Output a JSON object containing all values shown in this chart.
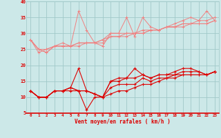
{
  "x": [
    0,
    1,
    2,
    3,
    4,
    5,
    6,
    7,
    8,
    9,
    10,
    11,
    12,
    13,
    14,
    15,
    16,
    17,
    18,
    19,
    20,
    21,
    22,
    23
  ],
  "lines_pink": [
    [
      28,
      25,
      24,
      26,
      27,
      26,
      37,
      31,
      27,
      26,
      30,
      30,
      35,
      29,
      35,
      32,
      31,
      32,
      33,
      34,
      35,
      34,
      37,
      34
    ],
    [
      28,
      24,
      25,
      26,
      26,
      26,
      27,
      27,
      27,
      28,
      30,
      30,
      30,
      30,
      31,
      31,
      31,
      32,
      32,
      33,
      33,
      34,
      34,
      35
    ],
    [
      28,
      25,
      25,
      26,
      26,
      26,
      27,
      27,
      27,
      28,
      29,
      29,
      30,
      30,
      30,
      31,
      31,
      32,
      32,
      33,
      33,
      33,
      33,
      34
    ],
    [
      28,
      25,
      24,
      26,
      26,
      26,
      26,
      27,
      27,
      27,
      29,
      29,
      29,
      30,
      30,
      31,
      31,
      32,
      32,
      32,
      33,
      33,
      33,
      34
    ]
  ],
  "lines_red": [
    [
      12,
      10,
      10,
      12,
      12,
      13,
      19,
      12,
      11,
      10,
      15,
      16,
      16,
      19,
      17,
      16,
      17,
      17,
      18,
      19,
      19,
      18,
      17,
      18
    ],
    [
      12,
      10,
      10,
      12,
      12,
      13,
      12,
      12,
      11,
      10,
      15,
      15,
      16,
      16,
      17,
      16,
      17,
      17,
      17,
      18,
      18,
      18,
      17,
      18
    ],
    [
      12,
      10,
      10,
      12,
      12,
      13,
      12,
      12,
      11,
      10,
      13,
      14,
      14,
      14,
      16,
      15,
      16,
      16,
      17,
      17,
      17,
      17,
      17,
      18
    ],
    [
      12,
      10,
      10,
      12,
      12,
      12,
      12,
      6,
      10,
      10,
      11,
      12,
      12,
      13,
      14,
      14,
      15,
      16,
      16,
      17,
      17,
      17,
      17,
      18
    ]
  ],
  "xlabel": "Vent moyen/en rafales ( km/h )",
  "ylim": [
    5,
    40
  ],
  "xlim": [
    -0.5,
    23.5
  ],
  "yticks": [
    5,
    10,
    15,
    20,
    25,
    30,
    35,
    40
  ],
  "xticks": [
    0,
    1,
    2,
    3,
    4,
    5,
    6,
    7,
    8,
    9,
    10,
    11,
    12,
    13,
    14,
    15,
    16,
    17,
    18,
    19,
    20,
    21,
    22,
    23
  ],
  "bg_color": "#cce8e8",
  "grid_color": "#a0c8c8",
  "pink_color": "#f08080",
  "red_color": "#dd0000",
  "marker_size": 1.8,
  "lw_pink": 0.7,
  "lw_red": 0.8
}
